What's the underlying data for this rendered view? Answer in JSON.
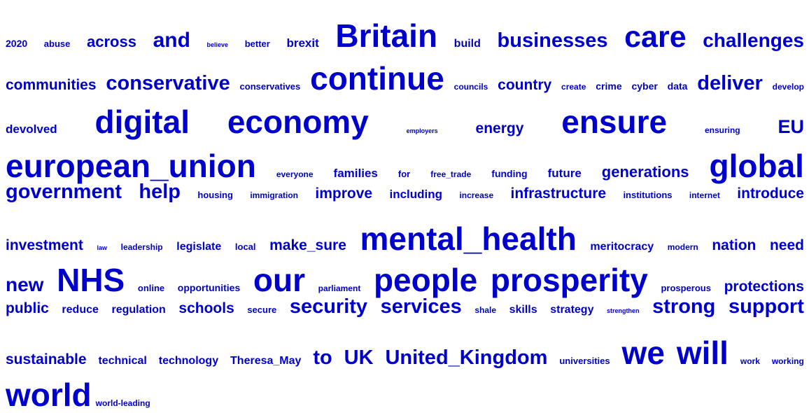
{
  "cloud": {
    "color": "#0000cc",
    "rows": [
      {
        "align": "justify",
        "words": [
          {
            "text": "2020",
            "size": 14
          },
          {
            "text": "abuse",
            "size": 13
          },
          {
            "text": "across",
            "size": 22
          },
          {
            "text": "and",
            "size": 30
          },
          {
            "text": "believe",
            "size": 9
          },
          {
            "text": "better",
            "size": 13
          },
          {
            "text": "brexit",
            "size": 17
          },
          {
            "text": "Britain",
            "size": 46
          },
          {
            "text": "build",
            "size": 16
          },
          {
            "text": "businesses",
            "size": 29
          },
          {
            "text": "care",
            "size": 43
          },
          {
            "text": "challenges",
            "size": 28
          }
        ]
      },
      {
        "align": "justify",
        "words": [
          {
            "text": "communities",
            "size": 21
          },
          {
            "text": "conservative",
            "size": 29
          },
          {
            "text": "conservatives",
            "size": 13
          },
          {
            "text": "continue",
            "size": 46
          },
          {
            "text": "councils",
            "size": 12
          },
          {
            "text": "country",
            "size": 21
          },
          {
            "text": "create",
            "size": 12
          },
          {
            "text": "crime",
            "size": 14
          },
          {
            "text": "cyber",
            "size": 14
          },
          {
            "text": "data",
            "size": 14
          },
          {
            "text": "deliver",
            "size": 29
          },
          {
            "text": "develop",
            "size": 12
          }
        ]
      },
      {
        "align": "justify",
        "words": [
          {
            "text": "devolved",
            "size": 17
          },
          {
            "text": "digital",
            "size": 46
          },
          {
            "text": "economy",
            "size": 46
          },
          {
            "text": "employers",
            "size": 9
          },
          {
            "text": "energy",
            "size": 21
          },
          {
            "text": "ensure",
            "size": 46
          },
          {
            "text": "ensuring",
            "size": 12
          },
          {
            "text": "EU",
            "size": 27
          }
        ]
      },
      {
        "align": "justify",
        "words": [
          {
            "text": "european_union",
            "size": 46
          },
          {
            "text": "everyone",
            "size": 12
          },
          {
            "text": "families",
            "size": 17
          },
          {
            "text": "for",
            "size": 13
          },
          {
            "text": "free_trade",
            "size": 12
          },
          {
            "text": "funding",
            "size": 14
          },
          {
            "text": "future",
            "size": 17
          },
          {
            "text": "generations",
            "size": 22
          },
          {
            "text": "global",
            "size": 46
          }
        ]
      },
      {
        "align": "justify",
        "words": [
          {
            "text": "government",
            "size": 29
          },
          {
            "text": "help",
            "size": 29
          },
          {
            "text": "housing",
            "size": 13
          },
          {
            "text": "immigration",
            "size": 12
          },
          {
            "text": "improve",
            "size": 21
          },
          {
            "text": "including",
            "size": 17
          },
          {
            "text": "increase",
            "size": 12
          },
          {
            "text": "infrastructure",
            "size": 21
          },
          {
            "text": "institutions",
            "size": 13
          },
          {
            "text": "internet",
            "size": 12
          },
          {
            "text": "introduce",
            "size": 21
          }
        ]
      },
      {
        "align": "justify",
        "words": [
          {
            "text": "investment",
            "size": 21
          },
          {
            "text": "law",
            "size": 9
          },
          {
            "text": "leadership",
            "size": 12
          },
          {
            "text": "legislate",
            "size": 16
          },
          {
            "text": "local",
            "size": 13
          },
          {
            "text": "make_sure",
            "size": 21
          },
          {
            "text": "mental_health",
            "size": 46
          },
          {
            "text": "meritocracy",
            "size": 16
          },
          {
            "text": "modern",
            "size": 12
          },
          {
            "text": "nation",
            "size": 21
          },
          {
            "text": "need",
            "size": 21
          }
        ]
      },
      {
        "align": "justify",
        "words": [
          {
            "text": "new",
            "size": 28
          },
          {
            "text": "NHS",
            "size": 46
          },
          {
            "text": "online",
            "size": 13
          },
          {
            "text": "opportunities",
            "size": 14
          },
          {
            "text": "our",
            "size": 46
          },
          {
            "text": "parliament",
            "size": 12
          },
          {
            "text": "people",
            "size": 46
          },
          {
            "text": "prosperity",
            "size": 46
          },
          {
            "text": "prosperous",
            "size": 13
          },
          {
            "text": "protections",
            "size": 21
          }
        ]
      },
      {
        "align": "justify",
        "words": [
          {
            "text": "public",
            "size": 21
          },
          {
            "text": "reduce",
            "size": 16
          },
          {
            "text": "regulation",
            "size": 16
          },
          {
            "text": "schools",
            "size": 21
          },
          {
            "text": "secure",
            "size": 13
          },
          {
            "text": "security",
            "size": 29
          },
          {
            "text": "services",
            "size": 29
          },
          {
            "text": "shale",
            "size": 12
          },
          {
            "text": "skills",
            "size": 16
          },
          {
            "text": "strategy",
            "size": 16
          },
          {
            "text": "strengthen",
            "size": 9
          },
          {
            "text": "strong",
            "size": 29
          },
          {
            "text": "support",
            "size": 29
          }
        ]
      },
      {
        "align": "justify",
        "words": [
          {
            "text": "sustainable",
            "size": 21
          },
          {
            "text": "technical",
            "size": 16
          },
          {
            "text": "technology",
            "size": 16
          },
          {
            "text": "Theresa_May",
            "size": 16
          },
          {
            "text": "to",
            "size": 29
          },
          {
            "text": "UK",
            "size": 29
          },
          {
            "text": "United_Kingdom",
            "size": 29
          },
          {
            "text": "universities",
            "size": 13
          },
          {
            "text": "we",
            "size": 46
          },
          {
            "text": "will",
            "size": 46
          },
          {
            "text": "work",
            "size": 12
          },
          {
            "text": "working",
            "size": 12
          }
        ]
      },
      {
        "align": "left",
        "words": [
          {
            "text": "world",
            "size": 46
          },
          {
            "text": "world-leading",
            "size": 12
          }
        ]
      }
    ]
  }
}
